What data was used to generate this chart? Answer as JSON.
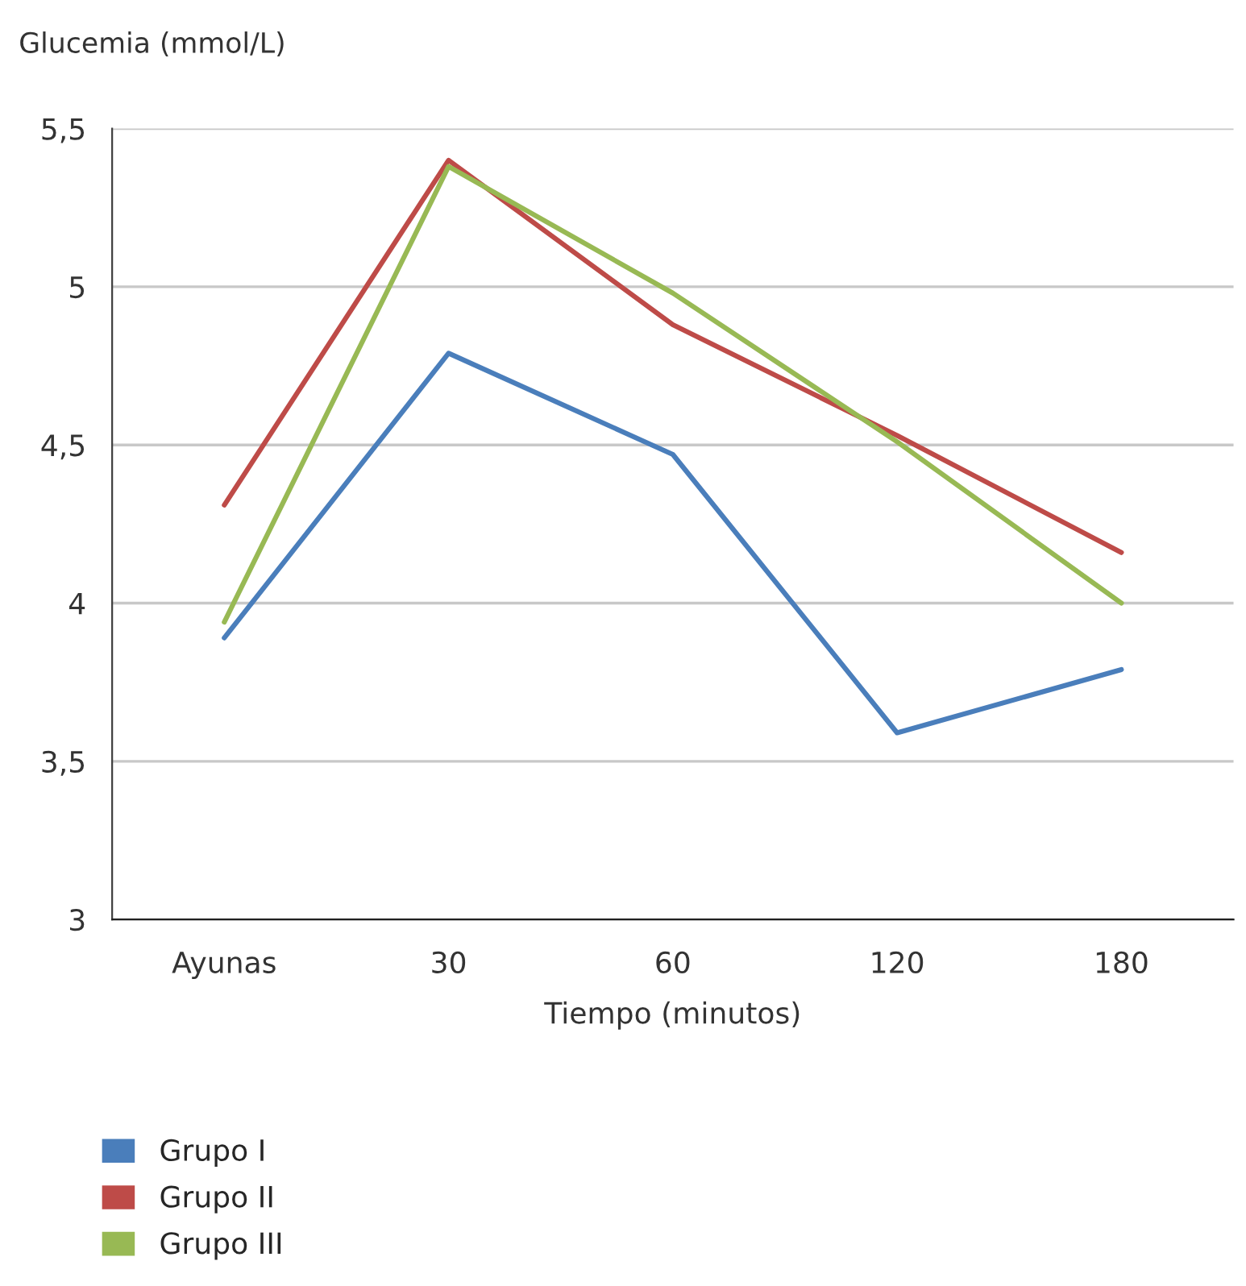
{
  "chart_data": {
    "type": "line",
    "ylabel": "Glucemia (mmol/L)",
    "xlabel": "Tiempo (minutos)",
    "categories": [
      "Ayunas",
      "30",
      "60",
      "120",
      "180"
    ],
    "series": [
      {
        "name": "Grupo I",
        "color": "#4a7ebb",
        "values": [
          3.89,
          4.79,
          4.47,
          3.59,
          3.79
        ]
      },
      {
        "name": "Grupo II",
        "color": "#be4b48",
        "values": [
          4.31,
          5.4,
          4.88,
          4.53,
          4.16
        ]
      },
      {
        "name": "Grupo III",
        "color": "#98b954",
        "values": [
          3.94,
          5.38,
          4.98,
          4.51,
          4.0
        ]
      }
    ],
    "ylim": [
      3,
      5.5
    ],
    "yticks": [
      3,
      {
        "value": 3.5,
        "label": "3,5"
      },
      4,
      {
        "value": 4.5,
        "label": "4,5"
      },
      5,
      {
        "value": 5.5,
        "label": "5,5"
      }
    ],
    "grid": "y",
    "legend": "bottom left",
    "marker": "none",
    "line_style": "solid"
  }
}
